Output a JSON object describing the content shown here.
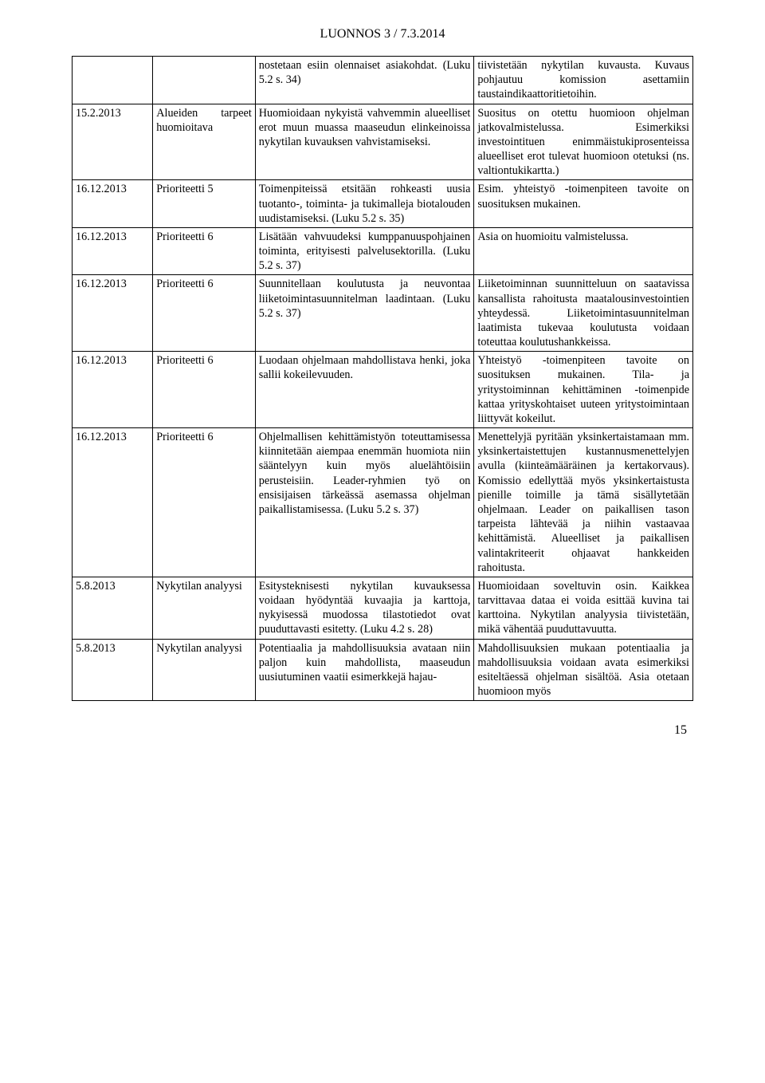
{
  "header": "LUONNOS 3 / 7.3.2014",
  "pageNumber": "15",
  "rows": [
    {
      "c1": "",
      "c2": "",
      "c3": "nostetaan esiin olennaiset asiakohdat. (Luku 5.2 s. 34)",
      "c4": "tiivistetään nykytilan kuvausta. Kuvaus pohjautuu komission asettamiin taustaindikaattoritietoihin."
    },
    {
      "c1": "15.2.2013",
      "c2": "Alueiden tarpeet huomioitava",
      "c3": "Huomioidaan nykyistä vahvemmin alueelliset erot muun muassa maaseudun elinkeinoissa nykytilan kuvauksen vahvistamiseksi.",
      "c4": "Suositus on otettu huomioon ohjelman jatkovalmistelussa. Esimerkiksi investointituen enimmäistukiprosenteissa alueelliset erot tulevat huomioon otetuksi (ns. valtiontukikartta.)"
    },
    {
      "c1": "16.12.2013",
      "c2": "Prioriteetti 5",
      "c3": "Toimenpiteissä etsitään rohkeasti uusia tuotanto-, toiminta- ja tukimalleja biotalouden uudistamiseksi. (Luku 5.2 s. 35)",
      "c4": "Esim. yhteistyö -toimenpiteen tavoite on suosituksen mukainen."
    },
    {
      "c1": "16.12.2013",
      "c2": "Prioriteetti 6",
      "c3": "Lisätään vahvuudeksi kumppanuuspohjainen toiminta, erityisesti palvelusektorilla. (Luku 5.2 s. 37)",
      "c4": "Asia on huomioitu valmistelussa."
    },
    {
      "c1": "16.12.2013",
      "c2": "Prioriteetti 6",
      "c3": "Suunnitellaan koulutusta ja neuvontaa liiketoimintasuunnitelman laadintaan. (Luku 5.2 s. 37)",
      "c4": "Liiketoiminnan suunnitteluun on saatavissa kansallista rahoitusta maatalousinvestointien yhteydessä. Liiketoimintasuunnitelman laatimista tukevaa koulutusta voidaan toteuttaa koulutushankkeissa."
    },
    {
      "c1": "16.12.2013",
      "c2": "Prioriteetti 6",
      "c3": "Luodaan ohjelmaan mahdollistava henki, joka sallii kokeilevuuden.",
      "c4": "Yhteistyö -toimenpiteen tavoite on suosituksen mukainen. Tila- ja yritystoiminnan kehittäminen -toimenpide kattaa yrityskohtaiset uuteen yritystoimintaan liittyvät kokeilut."
    },
    {
      "c1": "16.12.2013",
      "c2": "Prioriteetti 6",
      "c3": "Ohjelmallisen kehittämistyön toteuttamisessa kiinnitetään aiempaa enemmän huomiota niin sääntelyyn kuin myös aluelähtöisiin perusteisiin. Leader-ryhmien työ on ensisijaisen tärkeässä asemassa ohjelman paikallistamisessa. (Luku 5.2 s. 37)",
      "c4": "Menettelyjä pyritään yksinkertaistamaan mm. yksinkertaistettujen kustannusmenettelyjen avulla (kiinteämääräinen ja kertakorvaus). Komissio edellyttää myös yksinkertaistusta pienille toimille ja tämä sisällytetään ohjelmaan. Leader on paikallisen tason tarpeista lähtevää ja niihin vastaavaa kehittämistä. Alueelliset ja paikallisen valintakriteerit ohjaavat hankkeiden rahoitusta."
    },
    {
      "c1": "5.8.2013",
      "c2": "Nykytilan analyysi",
      "c3": "Esitysteknisesti nykytilan kuvauksessa voidaan hyödyntää kuvaajia ja karttoja, nykyisessä muodossa tilastotiedot ovat puuduttavasti esitetty. (Luku 4.2 s. 28)",
      "c4": "Huomioidaan soveltuvin osin. Kaikkea tarvittavaa dataa ei voida esittää kuvina tai karttoina. Nykytilan analyysia tiivistetään, mikä vähentää puuduttavuutta."
    },
    {
      "c1": "5.8.2013",
      "c2": "Nykytilan analyysi",
      "c3": "Potentiaalia ja mahdollisuuksia avataan niin paljon kuin mahdollista, maaseudun uusiutuminen vaatii esimerkkejä hajau-",
      "c4": "Mahdollisuuksien mukaan potentiaalia ja mahdollisuuksia voidaan avata esimerkiksi esiteltäessä ohjelman sisältöä. Asia otetaan huomioon myös"
    }
  ]
}
